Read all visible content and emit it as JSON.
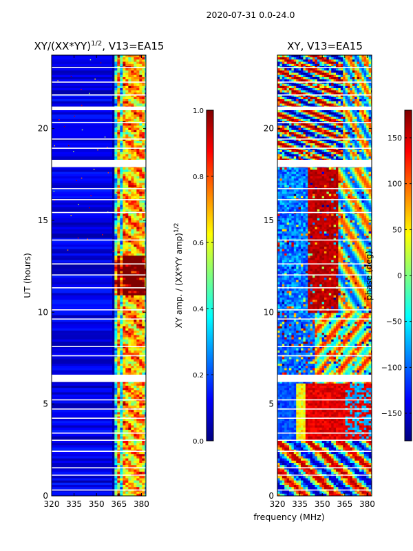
{
  "figure_title": "2020-07-31 0.0-24.0",
  "colors": {
    "jet": [
      "#00007f",
      "#0000ff",
      "#007fff",
      "#00ffff",
      "#7fff7f",
      "#ffff00",
      "#ff7f00",
      "#ff0000",
      "#7f0000"
    ],
    "gap": "#ffffff",
    "frame": "#000000"
  },
  "chart_data": [
    {
      "type": "heatmap",
      "name": "amplitude",
      "title_main": "XY/(XX*YY)",
      "title_sup": "1/2",
      "title_rest": ", V13=EA15",
      "x_range": [
        320,
        383
      ],
      "x_ticks": [
        320,
        335,
        350,
        365,
        380
      ],
      "y_range": [
        0,
        24
      ],
      "y_ticks": [
        0,
        5,
        10,
        15,
        20
      ],
      "ylabel": "UT (hours)",
      "channel_columns_MHz": [
        364,
        368,
        372.5,
        376,
        380
      ],
      "colorbar": {
        "label_main": "XY amp. / (XX*YY amp)",
        "label_sup": "1/2",
        "range": [
          0,
          1
        ],
        "ticks": [
          0.0,
          0.2,
          0.4,
          0.6,
          0.8,
          1.0
        ],
        "tick_labels": [
          "0.0",
          "0.2",
          "0.4",
          "0.6",
          "0.8",
          "1.0"
        ]
      }
    },
    {
      "type": "heatmap",
      "name": "phase",
      "title": "XY, V13=EA15",
      "x_range": [
        320,
        383
      ],
      "x_ticks": [
        320,
        335,
        350,
        365,
        380
      ],
      "y_range": [
        0,
        24
      ],
      "y_ticks": [
        0,
        5,
        10,
        15,
        20
      ],
      "xlabel": "frequency (MHz)",
      "colorbar": {
        "label": "phase (deg)",
        "range": [
          -180,
          180
        ],
        "ticks": [
          150,
          100,
          50,
          0,
          -50,
          -100,
          -150
        ],
        "tick_labels": [
          "150",
          "100",
          "50",
          "0",
          "−50",
          "−100",
          "−150"
        ]
      }
    }
  ],
  "gaps_UT_hours": [
    [
      6.2,
      6.6
    ],
    [
      17.9,
      18.3
    ],
    [
      0.3,
      0.35
    ],
    [
      1.1,
      1.16
    ],
    [
      1.5,
      1.56
    ],
    [
      2.4,
      2.46
    ],
    [
      3.0,
      3.06
    ],
    [
      3.4,
      3.45
    ],
    [
      4.2,
      4.26
    ],
    [
      4.7,
      4.76
    ],
    [
      5.2,
      5.26
    ],
    [
      7.6,
      7.66
    ],
    [
      8.1,
      8.16
    ],
    [
      9.6,
      9.66
    ],
    [
      10.1,
      10.16
    ],
    [
      11.3,
      11.36
    ],
    [
      12.0,
      12.06
    ],
    [
      12.6,
      12.66
    ],
    [
      13.9,
      13.96
    ],
    [
      15.4,
      15.46
    ],
    [
      16.1,
      16.16
    ],
    [
      16.7,
      16.76
    ],
    [
      18.9,
      18.96
    ],
    [
      19.4,
      19.46
    ],
    [
      20.3,
      20.36
    ],
    [
      21.0,
      21.2
    ],
    [
      21.8,
      21.86
    ],
    [
      22.5,
      22.56
    ],
    [
      23.3,
      23.36
    ]
  ]
}
